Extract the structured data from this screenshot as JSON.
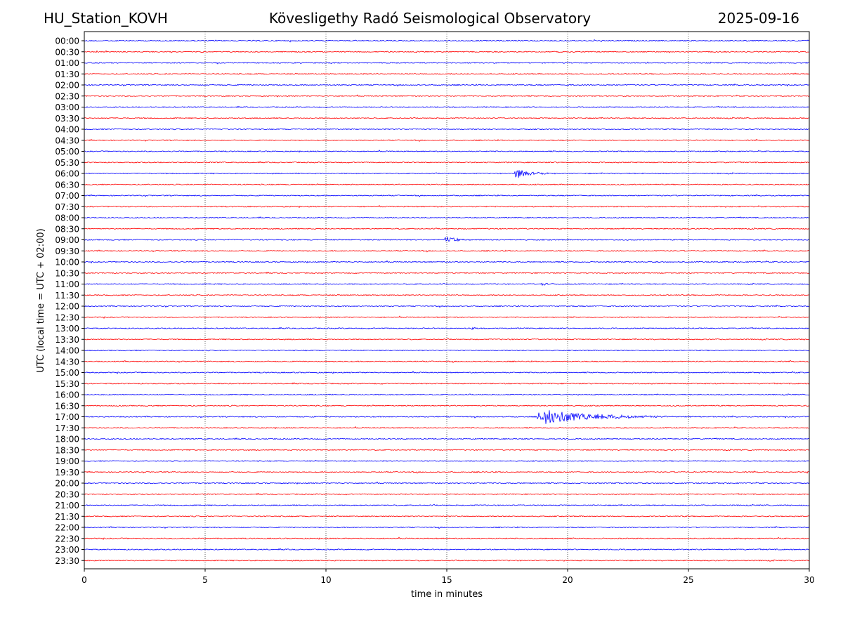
{
  "header": {
    "station": "HU_Station_KOVH",
    "title": "Kövesligethy Radó Seismological Observatory",
    "date": "2025-09-16"
  },
  "chart_data": {
    "type": "line",
    "title": "Kövesligethy Radó Seismological Observatory",
    "xlabel": "time in minutes",
    "ylabel": "UTC (local time = UTC + 02:00)",
    "xlim": [
      0,
      30
    ],
    "xticks": [
      0,
      5,
      10,
      15,
      20,
      25,
      30
    ],
    "grid": "vertical dotted at 5-minute ticks",
    "row_labels": [
      "00:00",
      "00:30",
      "01:00",
      "01:30",
      "02:00",
      "02:30",
      "03:00",
      "03:30",
      "04:00",
      "04:30",
      "05:00",
      "05:30",
      "06:00",
      "06:30",
      "07:00",
      "07:30",
      "08:00",
      "08:30",
      "09:00",
      "09:30",
      "10:00",
      "10:30",
      "11:00",
      "11:30",
      "12:00",
      "12:30",
      "13:00",
      "13:30",
      "14:00",
      "14:30",
      "15:00",
      "15:30",
      "16:00",
      "16:30",
      "17:00",
      "17:30",
      "18:00",
      "18:30",
      "19:00",
      "19:30",
      "20:00",
      "20:30",
      "21:00",
      "21:30",
      "22:00",
      "22:30",
      "23:00",
      "23:30"
    ],
    "trace_colors": [
      "#0000ff",
      "#ff0000"
    ],
    "events": [
      {
        "row": "06:00",
        "start_min": 17.8,
        "duration_min": 1.8,
        "amplitude": 0.8
      },
      {
        "row": "09:00",
        "start_min": 14.9,
        "duration_min": 1.2,
        "amplitude": 0.65
      },
      {
        "row": "11:00",
        "start_min": 18.9,
        "duration_min": 0.8,
        "amplitude": 0.3
      },
      {
        "row": "13:00",
        "start_min": 16.0,
        "duration_min": 0.7,
        "amplitude": 0.25
      },
      {
        "row": "17:00",
        "start_min": 18.7,
        "duration_min": 6.5,
        "amplitude": 1.3
      }
    ]
  }
}
